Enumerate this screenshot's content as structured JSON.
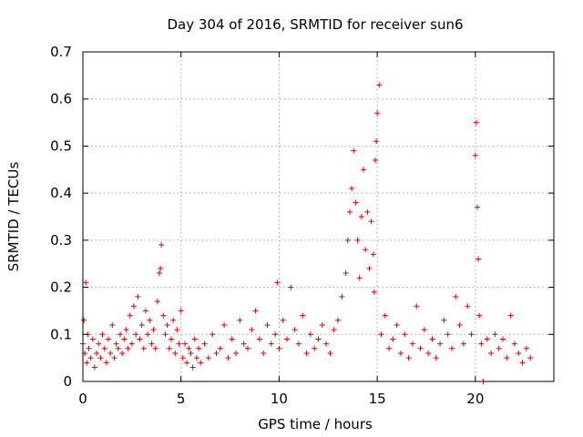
{
  "chart_data": {
    "type": "scatter",
    "title": "Day 304 of 2016, SRMTID for receiver sun6",
    "xlabel": "GPS time / hours",
    "ylabel": "SRMTID / TECUs",
    "xlim": [
      0,
      24
    ],
    "ylim": [
      0,
      0.7
    ],
    "x_ticks": [
      0,
      5,
      10,
      15,
      20
    ],
    "x_tick_labels": [
      "0",
      "5",
      "10",
      "15",
      "20"
    ],
    "y_ticks": [
      0,
      0.1,
      0.2,
      0.3,
      0.4,
      0.5,
      0.6,
      0.7
    ],
    "y_tick_labels": [
      "0",
      "0.1",
      "0.2",
      "0.3",
      "0.4",
      "0.5",
      "0.6",
      "0.7"
    ],
    "grid": true,
    "marker": "plus",
    "color": "#e00000",
    "series": [
      {
        "name": "SRMTID",
        "x": [
          0.0,
          0.05,
          0.1,
          0.15,
          0.2,
          0.25,
          0.3,
          0.4,
          0.5,
          0.6,
          0.7,
          0.8,
          0.9,
          1.0,
          1.1,
          1.2,
          1.3,
          1.4,
          1.5,
          1.6,
          1.7,
          1.8,
          1.9,
          2.0,
          2.1,
          2.2,
          2.3,
          2.4,
          2.5,
          2.6,
          2.7,
          2.8,
          2.9,
          3.0,
          3.1,
          3.2,
          3.3,
          3.4,
          3.5,
          3.6,
          3.7,
          3.8,
          3.9,
          3.95,
          4.0,
          4.1,
          4.2,
          4.3,
          4.4,
          4.5,
          4.6,
          4.7,
          4.8,
          4.9,
          5.0,
          5.1,
          5.2,
          5.3,
          5.4,
          5.5,
          5.6,
          5.7,
          5.8,
          5.9,
          6.0,
          6.2,
          6.4,
          6.6,
          6.8,
          7.0,
          7.2,
          7.4,
          7.6,
          7.8,
          8.0,
          8.2,
          8.4,
          8.6,
          8.8,
          9.0,
          9.2,
          9.4,
          9.6,
          9.8,
          9.9,
          10.0,
          10.2,
          10.4,
          10.6,
          10.8,
          11.0,
          11.2,
          11.4,
          11.6,
          11.8,
          12.0,
          12.2,
          12.4,
          12.6,
          12.8,
          13.0,
          13.2,
          13.4,
          13.5,
          13.6,
          13.7,
          13.8,
          13.9,
          14.0,
          14.1,
          14.2,
          14.3,
          14.4,
          14.5,
          14.6,
          14.7,
          14.8,
          14.85,
          14.9,
          14.95,
          15.0,
          15.1,
          15.2,
          15.4,
          15.6,
          15.8,
          16.0,
          16.2,
          16.4,
          16.6,
          16.8,
          17.0,
          17.2,
          17.4,
          17.6,
          17.8,
          18.0,
          18.2,
          18.4,
          18.6,
          18.8,
          19.0,
          19.2,
          19.4,
          19.6,
          19.8,
          20.0,
          20.05,
          20.1,
          20.15,
          20.2,
          20.3,
          20.4,
          20.6,
          20.8,
          21.0,
          21.2,
          21.4,
          21.6,
          21.8,
          22.0,
          22.2,
          22.4,
          22.6,
          22.8
        ],
        "y": [
          0.08,
          0.13,
          0.06,
          0.21,
          0.04,
          0.1,
          0.07,
          0.05,
          0.09,
          0.03,
          0.06,
          0.08,
          0.05,
          0.1,
          0.07,
          0.04,
          0.09,
          0.06,
          0.12,
          0.05,
          0.08,
          0.07,
          0.1,
          0.06,
          0.09,
          0.11,
          0.07,
          0.14,
          0.08,
          0.16,
          0.1,
          0.18,
          0.09,
          0.12,
          0.07,
          0.15,
          0.1,
          0.13,
          0.08,
          0.11,
          0.07,
          0.17,
          0.23,
          0.24,
          0.29,
          0.14,
          0.1,
          0.12,
          0.07,
          0.09,
          0.13,
          0.06,
          0.11,
          0.08,
          0.15,
          0.05,
          0.08,
          0.04,
          0.07,
          0.06,
          0.03,
          0.09,
          0.05,
          0.07,
          0.04,
          0.08,
          0.05,
          0.1,
          0.06,
          0.07,
          0.12,
          0.05,
          0.09,
          0.06,
          0.13,
          0.08,
          0.07,
          0.11,
          0.15,
          0.09,
          0.06,
          0.12,
          0.08,
          0.1,
          0.21,
          0.07,
          0.13,
          0.09,
          0.2,
          0.11,
          0.08,
          0.14,
          0.06,
          0.1,
          0.07,
          0.09,
          0.12,
          0.08,
          0.06,
          0.11,
          0.13,
          0.18,
          0.23,
          0.3,
          0.36,
          0.41,
          0.49,
          0.38,
          0.3,
          0.22,
          0.35,
          0.45,
          0.28,
          0.36,
          0.24,
          0.34,
          0.27,
          0.19,
          0.47,
          0.51,
          0.57,
          0.63,
          0.1,
          0.14,
          0.07,
          0.09,
          0.12,
          0.06,
          0.1,
          0.05,
          0.08,
          0.16,
          0.07,
          0.11,
          0.06,
          0.09,
          0.05,
          0.08,
          0.13,
          0.1,
          0.07,
          0.18,
          0.12,
          0.08,
          0.16,
          0.1,
          0.48,
          0.55,
          0.37,
          0.26,
          0.14,
          0.08,
          0.0,
          0.09,
          0.06,
          0.1,
          0.07,
          0.09,
          0.05,
          0.14,
          0.08,
          0.06,
          0.04,
          0.07,
          0.05
        ]
      }
    ]
  }
}
